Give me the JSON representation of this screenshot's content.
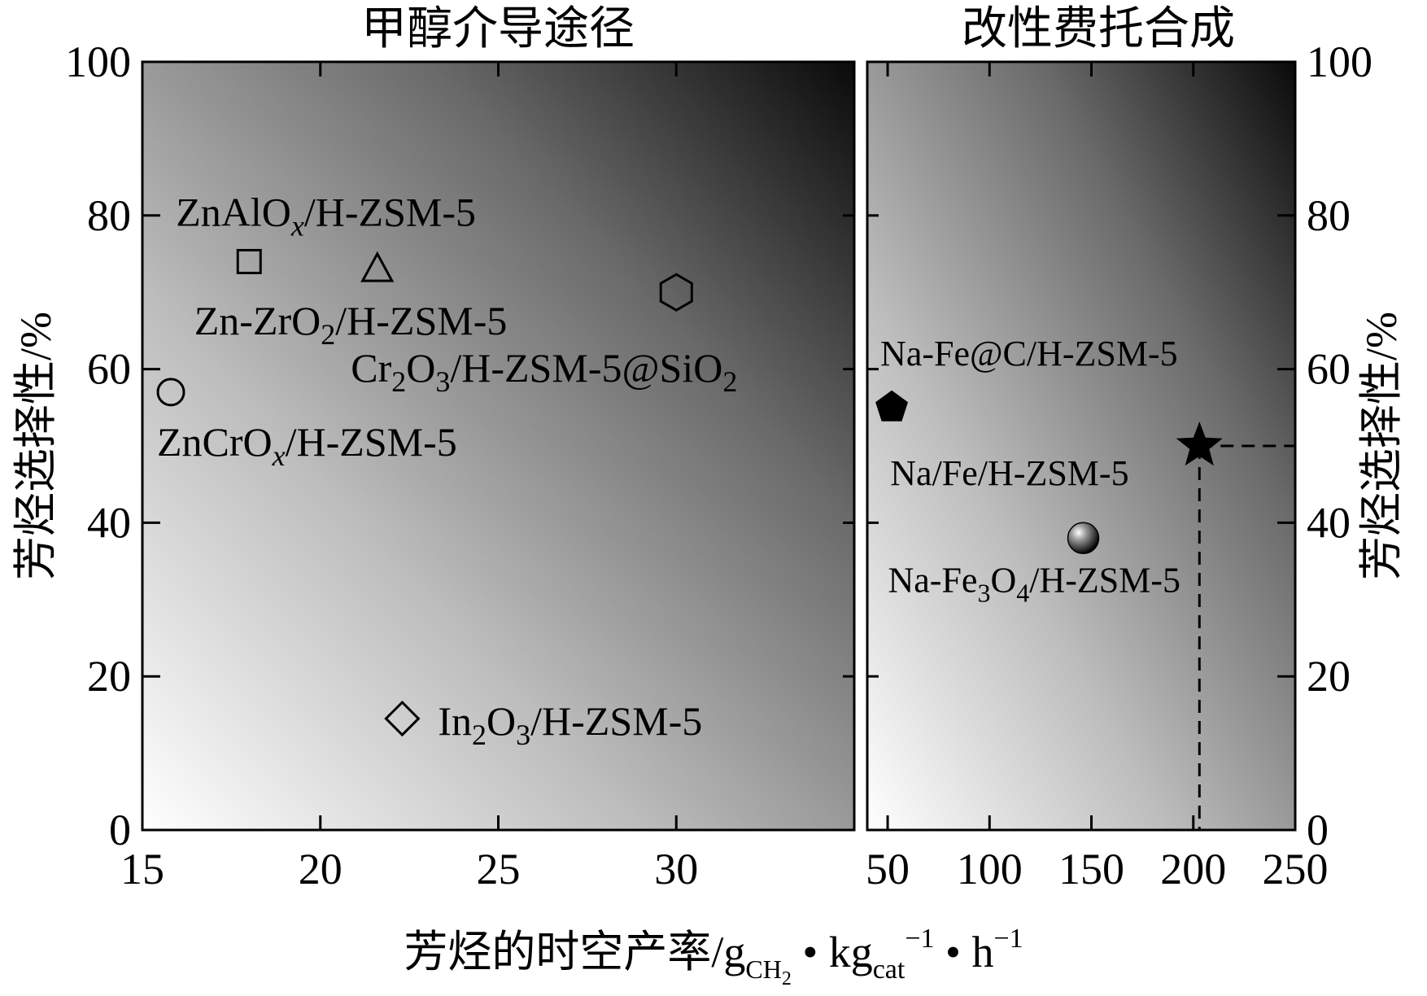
{
  "chart_data": [
    {
      "panel": "left",
      "type": "scatter",
      "title": "甲醇介导途径",
      "xlim": [
        15,
        35
      ],
      "ylim": [
        0,
        100
      ],
      "xticks": [
        15,
        20,
        25,
        30
      ],
      "yticks": [
        0,
        20,
        40,
        60,
        80,
        100
      ],
      "ylabel": "芳烃选择性/%",
      "grid": false,
      "points": [
        {
          "marker": "square-open",
          "x": 18.0,
          "y": 74.0,
          "label": "ZnAlO",
          "label_sub": "x",
          "label_rest": "/H-ZSM-5"
        },
        {
          "marker": "triangle-open",
          "x": 21.6,
          "y": 73.0,
          "label": "Zn-ZrO",
          "label_sub": "2",
          "label_rest": "/H-ZSM-5"
        },
        {
          "marker": "hexagon-open",
          "x": 30.0,
          "y": 70.0,
          "label": "Cr",
          "label_sub": "2",
          "label_mid": "O",
          "label_sub2": "3",
          "label_rest": "/H-ZSM-5@SiO",
          "label_sub3": "2"
        },
        {
          "marker": "circle-open",
          "x": 15.8,
          "y": 57.0,
          "label": "ZnCrO",
          "label_sub": "x",
          "label_rest": "/H-ZSM-5"
        },
        {
          "marker": "diamond-open",
          "x": 22.3,
          "y": 14.5,
          "label": "In",
          "label_sub": "2",
          "label_mid": "O",
          "label_sub2": "3",
          "label_rest": "/H-ZSM-5"
        }
      ]
    },
    {
      "panel": "right",
      "type": "scatter",
      "title": "改性费托合成",
      "xlim": [
        40,
        250
      ],
      "ylim": [
        0,
        100
      ],
      "xticks": [
        50,
        100,
        150,
        200,
        250
      ],
      "yticks": [
        0,
        20,
        40,
        60,
        80,
        100
      ],
      "ylabel": "芳烃选择性/%",
      "grid": false,
      "points": [
        {
          "marker": "pentagon-filled",
          "x": 52,
          "y": 55,
          "label": "Na-Fe@C/H-ZSM-5"
        },
        {
          "marker": "star-filled",
          "x": 203,
          "y": 50,
          "label": "Na/Fe/H-ZSM-5",
          "reference_lines": true
        },
        {
          "marker": "sphere",
          "x": 146,
          "y": 38,
          "label": "Na-Fe",
          "label_sub": "3",
          "label_mid": "O",
          "label_sub2": "4",
          "label_rest": "/H-ZSM-5"
        }
      ]
    }
  ],
  "xlabel": {
    "main": "芳烃的时空产率/g",
    "sub1": "CH",
    "sub1b": "2",
    "dot1": " • kg",
    "sub2": "cat",
    "sup2": "−1",
    "dot2": " • h",
    "sup3": "−1"
  }
}
